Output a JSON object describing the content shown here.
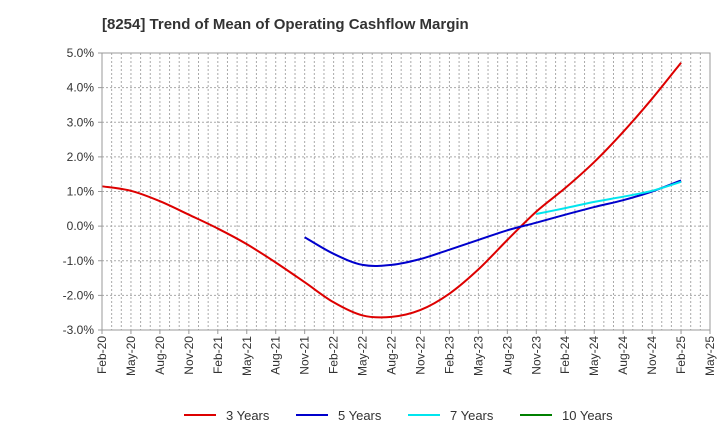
{
  "chart_data": {
    "type": "line",
    "title": "[8254]  Trend of Mean of Operating Cashflow Margin",
    "xlabel": "",
    "ylabel": "",
    "ylim": [
      -3.0,
      5.0
    ],
    "yticks": [
      "5.0%",
      "4.0%",
      "3.0%",
      "2.0%",
      "1.0%",
      "0.0%",
      "-1.0%",
      "-2.0%",
      "-3.0%"
    ],
    "ytick_values": [
      5,
      4,
      3,
      2,
      1,
      0,
      -1,
      -2,
      -3
    ],
    "categories": [
      "Feb-20",
      "May-20",
      "Aug-20",
      "Nov-20",
      "Feb-21",
      "May-21",
      "Aug-21",
      "Nov-21",
      "Feb-22",
      "May-22",
      "Aug-22",
      "Nov-22",
      "Feb-23",
      "May-23",
      "Aug-23",
      "Nov-23",
      "Feb-24",
      "May-24",
      "Aug-24",
      "Nov-24",
      "Feb-25",
      "May-25"
    ],
    "grid": true,
    "legend_position": "bottom",
    "series": [
      {
        "name": "3 Years",
        "color": "#dd0000",
        "points": [
          [
            0,
            1.15
          ],
          [
            1,
            1.02
          ],
          [
            2,
            0.72
          ],
          [
            3,
            0.33
          ],
          [
            4,
            -0.07
          ],
          [
            5,
            -0.52
          ],
          [
            6,
            -1.05
          ],
          [
            7,
            -1.62
          ],
          [
            8,
            -2.2
          ],
          [
            9,
            -2.58
          ],
          [
            10,
            -2.62
          ],
          [
            11,
            -2.42
          ],
          [
            12,
            -1.95
          ],
          [
            13,
            -1.25
          ],
          [
            14,
            -0.4
          ],
          [
            15,
            0.42
          ],
          [
            16,
            1.1
          ],
          [
            17,
            1.85
          ],
          [
            18,
            2.72
          ],
          [
            19,
            3.68
          ],
          [
            20,
            4.72
          ]
        ]
      },
      {
        "name": "5 Years",
        "color": "#0000cc",
        "points": [
          [
            7,
            -0.32
          ],
          [
            8,
            -0.8
          ],
          [
            9,
            -1.12
          ],
          [
            10,
            -1.12
          ],
          [
            11,
            -0.95
          ],
          [
            12,
            -0.68
          ],
          [
            13,
            -0.4
          ],
          [
            14,
            -0.12
          ],
          [
            15,
            0.1
          ],
          [
            16,
            0.33
          ],
          [
            17,
            0.55
          ],
          [
            18,
            0.75
          ],
          [
            19,
            1.0
          ],
          [
            20,
            1.32
          ]
        ]
      },
      {
        "name": "7 Years",
        "color": "#00e5ee",
        "points": [
          [
            15,
            0.35
          ],
          [
            16,
            0.52
          ],
          [
            17,
            0.7
          ],
          [
            18,
            0.85
          ],
          [
            19,
            1.02
          ],
          [
            20,
            1.28
          ]
        ]
      },
      {
        "name": "10 Years",
        "color": "#008000",
        "points": []
      }
    ]
  }
}
